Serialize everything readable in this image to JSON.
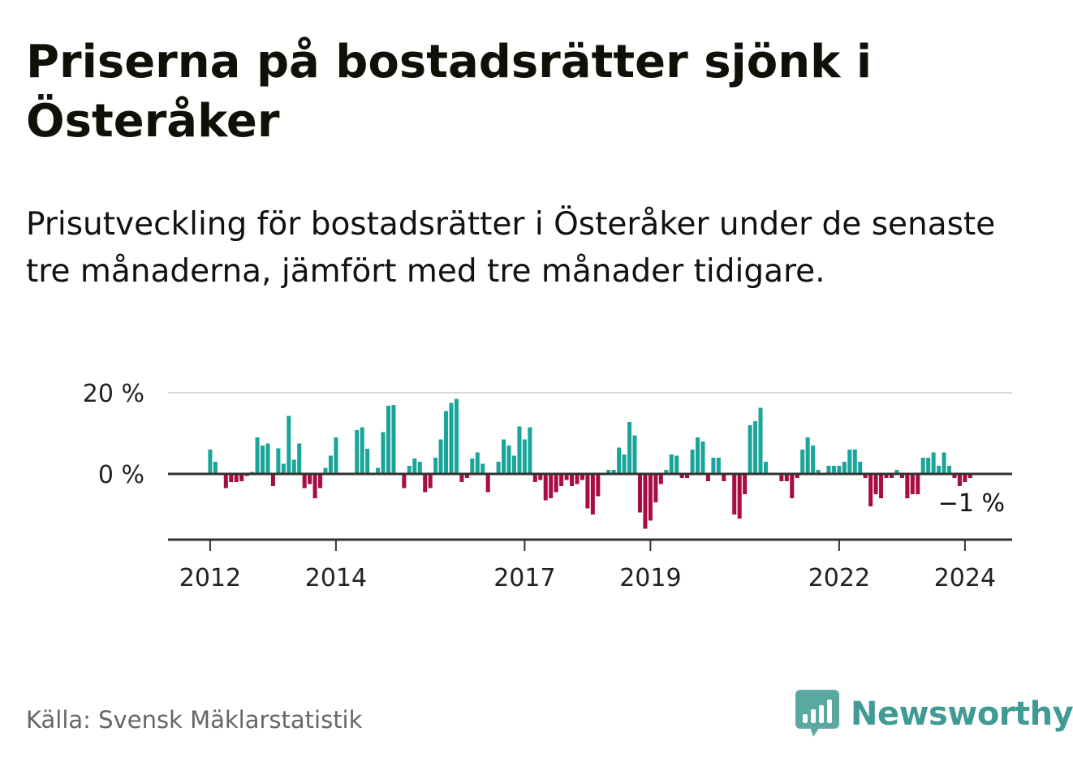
{
  "title": "Priserna på bostadsrätter sjönk i Österåker",
  "subtitle": "Prisutveckling för bostadsrätter i Österåker under de senaste tre månaderna, jämfört med tre månader tidigare.",
  "source": "Källa: Svensk Mäklarstatistik",
  "brand": "Newsworthy",
  "colors": {
    "positive": "#1aa59a",
    "negative": "#a80c45",
    "grid": "#d9d9d9",
    "axis": "#333333",
    "brand": "#3f9b94",
    "brand_icon": "#5aa9a0"
  },
  "chart_data": {
    "type": "bar",
    "title": "Priserna på bostadsrätter sjönk i Österåker",
    "ylabel": "",
    "xlabel": "",
    "ylim": [
      -16,
      20
    ],
    "x_range": [
      2011.33,
      2024.75
    ],
    "y_ticks": [
      {
        "value": 20,
        "label": "20 %"
      },
      {
        "value": 0,
        "label": "0 %"
      }
    ],
    "x_ticks": [
      {
        "value": 2012,
        "label": "2012"
      },
      {
        "value": 2014,
        "label": "2014"
      },
      {
        "value": 2017,
        "label": "2017"
      },
      {
        "value": 2019,
        "label": "2019"
      },
      {
        "value": 2022,
        "label": "2022"
      },
      {
        "value": 2024,
        "label": "2024"
      }
    ],
    "start_year": 2012,
    "start_month": 1,
    "values": [
      6.0,
      3.0,
      0.0,
      -3.5,
      -2.0,
      -2.0,
      -1.8,
      -0.5,
      0.5,
      9.0,
      7.0,
      7.5,
      -3.0,
      6.3,
      2.5,
      14.3,
      3.5,
      7.5,
      -3.5,
      -2.5,
      -6.0,
      -3.5,
      1.5,
      4.5,
      9.0,
      0,
      0,
      0,
      10.8,
      11.5,
      6.2,
      0,
      1.5,
      10.3,
      16.8,
      17.0,
      0,
      -3.5,
      2.0,
      3.8,
      3.0,
      -4.5,
      -3.5,
      4.0,
      8.5,
      15.5,
      17.5,
      18.5,
      -2.0,
      -1.0,
      3.8,
      5.3,
      2.5,
      -4.5,
      0,
      3.0,
      8.5,
      7.0,
      4.5,
      11.7,
      8.5,
      11.5,
      -2.0,
      -1.5,
      -6.5,
      -6.0,
      -4.5,
      -3.0,
      -1.5,
      -3.0,
      -2.5,
      -1.5,
      -8.5,
      -10.0,
      -5.5,
      0,
      1.0,
      1.0,
      6.5,
      4.8,
      12.8,
      9.5,
      -9.5,
      -13.5,
      -11.5,
      -7.0,
      -2.5,
      1.0,
      4.8,
      4.5,
      -1.0,
      -1.0,
      6.0,
      9.0,
      8.0,
      -1.8,
      4.0,
      4.0,
      -1.8,
      0,
      -10.0,
      -11.0,
      -5.0,
      12.0,
      13.0,
      16.3,
      3.0,
      0,
      0,
      -1.8,
      -1.8,
      -6.0,
      -1.0,
      6.0,
      9.0,
      7.0,
      1.0,
      0,
      2.0,
      2.0,
      2.0,
      3.0,
      6.0,
      6.0,
      3.0,
      -1.0,
      -8.0,
      -5.0,
      -6.0,
      -1.0,
      -1.0,
      1.0,
      -1.0,
      -6.0,
      -5.0,
      -5.0,
      4.0,
      4.0,
      5.3,
      2.0,
      5.3,
      2.0,
      -1.0,
      -3.0,
      -2.0,
      -1.0
    ],
    "end_label": "−1 %",
    "series": [
      {
        "name": "Prisutveckling (3 mån)",
        "unit": "%"
      }
    ]
  }
}
